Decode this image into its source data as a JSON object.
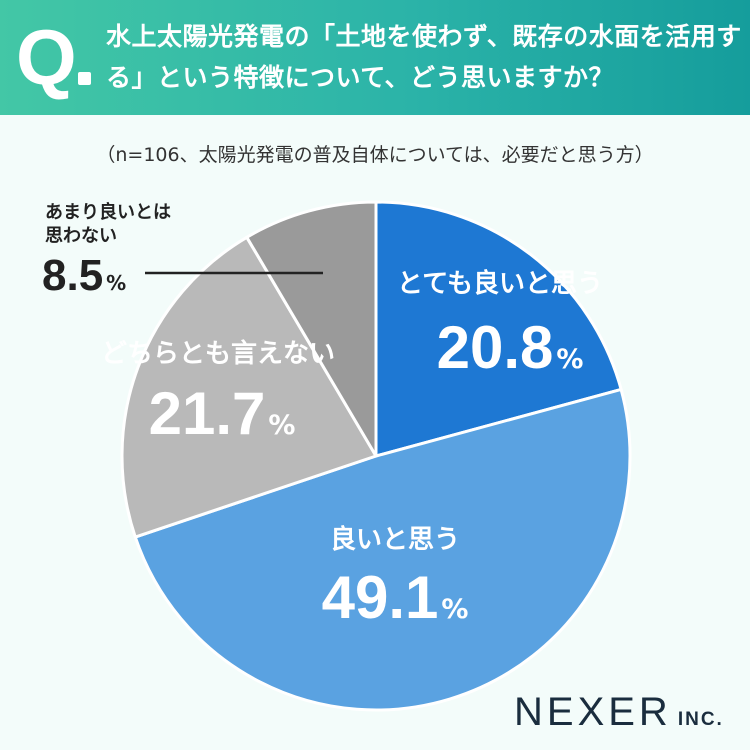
{
  "header": {
    "q_mark": "Q",
    "question": "水上太陽光発電の「土地を使わず、既存の水面を活用する」という特徴について、どう思いますか？"
  },
  "note": "（n=106、太陽光発電の普及自体については、必要だと思う方）",
  "chart_data": {
    "type": "pie",
    "title": "",
    "start_angle_deg": 0,
    "direction": "clockwise",
    "slices": [
      {
        "label": "とても良いと思う",
        "value": 20.8,
        "display": "20.8",
        "unit": "%",
        "color": "#1e78d3",
        "label_color": "#ffffff"
      },
      {
        "label": "良いと思う",
        "value": 49.1,
        "display": "49.1",
        "unit": "%",
        "color": "#5aa2e1",
        "label_color": "#ffffff"
      },
      {
        "label": "どちらとも言えない",
        "value": 21.7,
        "display": "21.7",
        "unit": "%",
        "color": "#b9b9b9",
        "label_color": "#ffffff"
      },
      {
        "label": "あまり良いとは思わない",
        "value": 8.5,
        "display": "8.5",
        "unit": "%",
        "color": "#9a9a9a",
        "label_color": "#222222"
      }
    ]
  },
  "brand": {
    "name": "NEXER",
    "suffix": "INC."
  }
}
